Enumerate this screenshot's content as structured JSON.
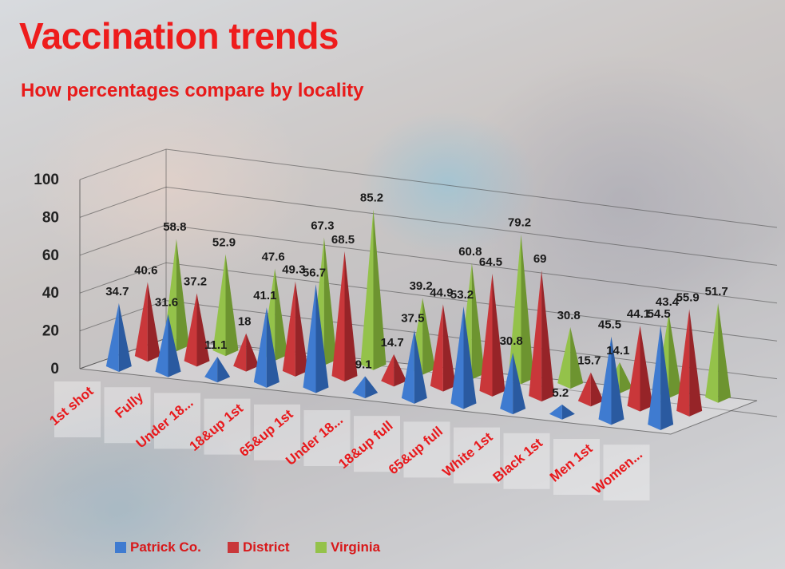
{
  "title": "Vaccination trends",
  "subtitle": "How percentages compare by locality",
  "colors": {
    "title": "#ee1c1c",
    "patrick": "#3f7bd0",
    "district": "#c9373a",
    "virginia": "#94c24a",
    "labels": "#e8191c"
  },
  "chart_data": {
    "type": "bar",
    "style": "3d-pyramid",
    "title": "Vaccination trends",
    "subtitle": "How percentages compare by locality",
    "categories": [
      "1st shot",
      "Fully",
      "Under 18...",
      "18&up 1st",
      "65&up 1st",
      "Under 18...",
      "18&up full",
      "65&up full",
      "White 1st",
      "Black 1st",
      "Men 1st",
      "Women..."
    ],
    "series": [
      {
        "name": "Patrick Co.",
        "values": [
          34.7,
          31.6,
          11.1,
          41.1,
          56.7,
          9.1,
          37.5,
          53.2,
          30.8,
          5.2,
          45.5,
          54.5
        ]
      },
      {
        "name": "District",
        "values": [
          40.6,
          37.2,
          18,
          49.3,
          68.5,
          14.7,
          44.9,
          64.5,
          69,
          15.7,
          44.1,
          55.9
        ]
      },
      {
        "name": "Virginia",
        "values": [
          58.8,
          52.9,
          47.6,
          67.3,
          85.2,
          39.2,
          60.8,
          79.2,
          30.8,
          14.1,
          43.4,
          51.7
        ]
      }
    ],
    "yticks": [
      "0",
      "20",
      "40",
      "60",
      "80",
      "100"
    ],
    "ylim": [
      0,
      100
    ],
    "grid": true,
    "legend": "bottom"
  }
}
